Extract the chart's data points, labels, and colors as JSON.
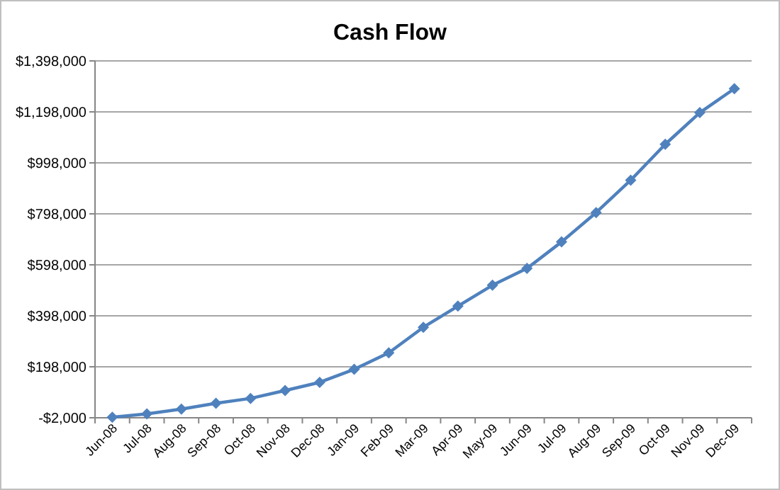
{
  "chart_data": {
    "type": "line",
    "title": "Cash Flow",
    "categories": [
      "Jun-08",
      "Jul-08",
      "Aug-08",
      "Sep-08",
      "Oct-08",
      "Nov-08",
      "Dec-08",
      "Jan-09",
      "Feb-09",
      "Mar-09",
      "Apr-09",
      "May-09",
      "Jun-09",
      "Jul-09",
      "Aug-09",
      "Sep-09",
      "Oct-09",
      "Nov-09",
      "Dec-09"
    ],
    "series": [
      {
        "color": "#4f81bd",
        "values": [
          0,
          13000,
          32000,
          55000,
          74000,
          105000,
          137000,
          188000,
          253000,
          353000,
          436000,
          518000,
          584000,
          688000,
          803000,
          930000,
          1071000,
          1195000,
          1289000
        ]
      }
    ],
    "ylim": [
      -2000,
      1398000
    ],
    "yticks": [
      {
        "value": -2000,
        "label": "-$2,000"
      },
      {
        "value": 198000,
        "label": "$198,000"
      },
      {
        "value": 398000,
        "label": "$398,000"
      },
      {
        "value": 598000,
        "label": "$598,000"
      },
      {
        "value": 798000,
        "label": "$798,000"
      },
      {
        "value": 998000,
        "label": "$998,000"
      },
      {
        "value": 1198000,
        "label": "$1,198,000"
      },
      {
        "value": 1398000,
        "label": "$1,398,000"
      }
    ],
    "grid": "y",
    "marker": "diamond",
    "line_style": "solid"
  }
}
